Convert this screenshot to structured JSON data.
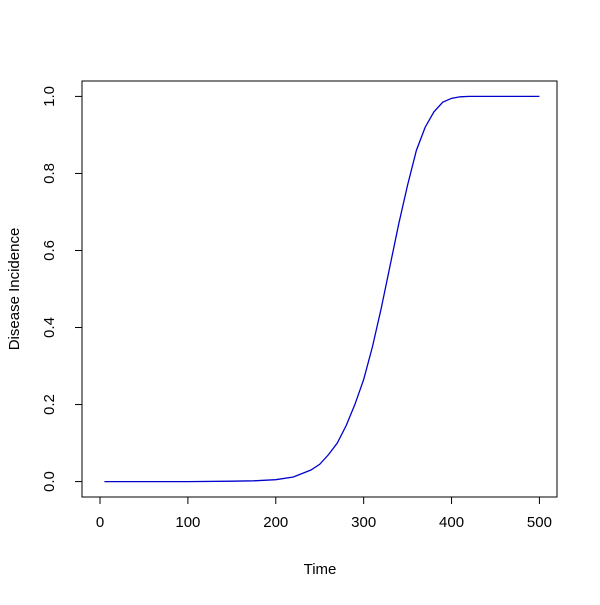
{
  "chart_data": {
    "type": "line",
    "x_label": "Time",
    "y_label": "Disease Incidence",
    "x": [
      5,
      50,
      100,
      150,
      175,
      200,
      220,
      240,
      250,
      260,
      270,
      280,
      290,
      300,
      310,
      320,
      330,
      340,
      350,
      360,
      370,
      380,
      390,
      400,
      410,
      420,
      450,
      500
    ],
    "series": [
      {
        "color": "#0000cd",
        "values": [
          0,
          0,
          0,
          0.001,
          0.002,
          0.005,
          0.012,
          0.03,
          0.045,
          0.07,
          0.1,
          0.145,
          0.2,
          0.265,
          0.35,
          0.45,
          0.56,
          0.67,
          0.77,
          0.86,
          0.92,
          0.96,
          0.985,
          0.995,
          0.999,
          1,
          1,
          1
        ]
      }
    ],
    "xlim": [
      -20.5,
      520
    ],
    "ylim": [
      -0.04,
      1.04
    ],
    "xticks": [
      0,
      100,
      200,
      300,
      400,
      500
    ],
    "yticks": [
      {
        "value": 0,
        "label": "0.0"
      },
      0.2,
      0.4,
      0.6,
      0.8,
      {
        "value": 1,
        "label": "1.0"
      }
    ],
    "grid": false
  }
}
